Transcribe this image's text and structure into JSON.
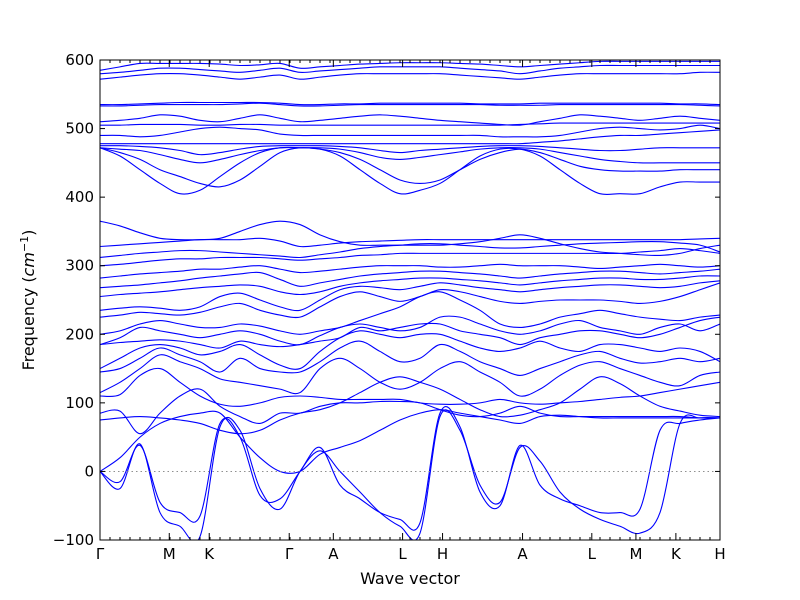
{
  "chart_data": {
    "type": "line",
    "title": "",
    "xlabel": "Wave vector",
    "ylabel_main": "Frequency (",
    "ylabel_math": "cm",
    "ylabel_exp": "−1",
    "ylabel_close": ")",
    "ylim": [
      -100,
      600
    ],
    "yticks": [
      -100,
      0,
      100,
      200,
      300,
      400,
      500,
      600
    ],
    "line_color": "#0000ff",
    "zero_line_style": "dotted",
    "grid": false,
    "legend": "none",
    "kpoints": [
      {
        "label": "Γ",
        "x": 0
      },
      {
        "label": "M",
        "x": 1.0
      },
      {
        "label": "K",
        "x": 1.577
      },
      {
        "label": "Γ",
        "x": 2.732
      },
      {
        "label": "A",
        "x": 3.369
      },
      {
        "label": "L",
        "x": 4.369
      },
      {
        "label": "H",
        "x": 4.946
      },
      {
        "label": "A",
        "x": 6.101
      },
      {
        "label": "L",
        "x": 7.101
      },
      {
        "label": "M",
        "x": 7.738
      },
      {
        "label": "K",
        "x": 8.315
      },
      {
        "label": "H",
        "x": 8.952
      }
    ],
    "series": [
      {
        "values": [
          0,
          -25,
          40,
          -60,
          -80,
          -95,
          65,
          60,
          -25,
          -55,
          0,
          30,
          0,
          -30,
          -60,
          -80,
          -90,
          80,
          60,
          -20,
          -45,
          35,
          15,
          -30,
          -55,
          -70,
          -80,
          -90,
          -60,
          70,
          78,
          78
        ]
      },
      {
        "values": [
          0,
          -15,
          38,
          -45,
          -60,
          -65,
          70,
          50,
          -35,
          -40,
          0,
          35,
          -20,
          -40,
          -60,
          -70,
          -75,
          85,
          65,
          -30,
          -50,
          38,
          -20,
          -40,
          -50,
          -60,
          -60,
          -55,
          60,
          70,
          75,
          78
        ]
      },
      {
        "values": [
          0,
          20,
          50,
          70,
          80,
          85,
          85,
          50,
          20,
          0,
          0,
          25,
          35,
          45,
          60,
          75,
          85,
          90,
          85,
          80,
          75,
          70,
          80,
          82,
          80,
          78,
          78,
          78,
          78,
          78,
          78,
          78
        ]
      },
      {
        "values": [
          75,
          78,
          80,
          78,
          75,
          70,
          60,
          55,
          60,
          75,
          85,
          90,
          100,
          115,
          130,
          138,
          130,
          120,
          105,
          90,
          80,
          82,
          90,
          100,
          120,
          138,
          128,
          110,
          95,
          88,
          82,
          80
        ]
      },
      {
        "values": [
          85,
          88,
          55,
          85,
          110,
          120,
          95,
          80,
          70,
          85,
          85,
          95,
          100,
          100,
          102,
          102,
          100,
          90,
          82,
          80,
          85,
          95,
          85,
          80,
          80,
          80,
          80,
          80,
          80,
          80,
          78,
          78
        ]
      },
      {
        "values": [
          110,
          112,
          140,
          150,
          130,
          110,
          98,
          95,
          100,
          108,
          110,
          108,
          105,
          105,
          105,
          105,
          100,
          98,
          98,
          100,
          105,
          100,
          98,
          100,
          102,
          105,
          108,
          110,
          115,
          120,
          125,
          130
        ]
      },
      {
        "values": [
          115,
          130,
          150,
          170,
          160,
          150,
          135,
          130,
          125,
          120,
          115,
          150,
          165,
          150,
          130,
          120,
          130,
          150,
          160,
          145,
          130,
          110,
          120,
          140,
          155,
          160,
          150,
          140,
          130,
          125,
          140,
          145
        ]
      },
      {
        "values": [
          145,
          150,
          165,
          180,
          170,
          160,
          145,
          165,
          150,
          145,
          145,
          160,
          180,
          190,
          175,
          160,
          165,
          185,
          175,
          160,
          150,
          140,
          150,
          160,
          170,
          175,
          165,
          158,
          160,
          165,
          160,
          165
        ]
      },
      {
        "values": [
          150,
          165,
          180,
          185,
          180,
          170,
          175,
          185,
          170,
          155,
          150,
          175,
          195,
          205,
          200,
          195,
          200,
          200,
          190,
          180,
          175,
          180,
          190,
          180,
          175,
          185,
          185,
          180,
          175,
          180,
          175,
          160
        ]
      },
      {
        "values": [
          185,
          188,
          190,
          192,
          190,
          185,
          180,
          190,
          185,
          182,
          185,
          190,
          195,
          210,
          205,
          210,
          215,
          215,
          205,
          200,
          195,
          185,
          195,
          200,
          205,
          205,
          200,
          195,
          200,
          210,
          220,
          225
        ]
      },
      {
        "values": [
          185,
          195,
          210,
          205,
          200,
          195,
          200,
          205,
          200,
          190,
          185,
          198,
          210,
          215,
          210,
          205,
          210,
          225,
          225,
          215,
          205,
          200,
          205,
          215,
          220,
          210,
          205,
          200,
          210,
          215,
          205,
          215
        ]
      },
      {
        "values": [
          200,
          205,
          215,
          220,
          215,
          210,
          210,
          215,
          212,
          205,
          200,
          205,
          210,
          220,
          230,
          240,
          255,
          262,
          250,
          235,
          215,
          210,
          215,
          225,
          230,
          235,
          230,
          225,
          222,
          220,
          225,
          228
        ]
      },
      {
        "values": [
          225,
          228,
          232,
          230,
          228,
          232,
          240,
          245,
          235,
          228,
          225,
          240,
          255,
          262,
          255,
          248,
          255,
          265,
          262,
          255,
          248,
          245,
          248,
          250,
          250,
          250,
          248,
          245,
          248,
          255,
          265,
          275
        ]
      },
      {
        "values": [
          235,
          238,
          240,
          238,
          235,
          240,
          255,
          260,
          250,
          240,
          235,
          250,
          265,
          270,
          268,
          265,
          270,
          275,
          272,
          268,
          265,
          262,
          265,
          268,
          270,
          272,
          272,
          270,
          268,
          270,
          275,
          278
        ]
      },
      {
        "values": [
          255,
          258,
          260,
          262,
          265,
          268,
          270,
          272,
          270,
          262,
          258,
          262,
          270,
          275,
          278,
          280,
          282,
          282,
          280,
          278,
          275,
          272,
          275,
          278,
          280,
          282,
          282,
          280,
          280,
          282,
          285,
          285
        ]
      },
      {
        "values": [
          268,
          270,
          272,
          275,
          278,
          282,
          285,
          288,
          290,
          280,
          270,
          275,
          280,
          285,
          288,
          290,
          292,
          292,
          290,
          288,
          285,
          282,
          285,
          288,
          290,
          292,
          292,
          290,
          288,
          290,
          292,
          295
        ]
      },
      {
        "values": [
          282,
          285,
          288,
          290,
          292,
          295,
          295,
          298,
          300,
          295,
          290,
          292,
          295,
          298,
          300,
          300,
          300,
          298,
          298,
          300,
          302,
          300,
          300,
          300,
          298,
          296,
          298,
          300,
          302,
          300,
          298,
          300
        ]
      },
      {
        "values": [
          300,
          302,
          305,
          308,
          310,
          310,
          312,
          312,
          312,
          310,
          308,
          310,
          312,
          315,
          316,
          318,
          318,
          318,
          318,
          318,
          318,
          318,
          318,
          318,
          318,
          318,
          318,
          320,
          322,
          325,
          322,
          318
        ]
      },
      {
        "values": [
          312,
          315,
          318,
          320,
          322,
          322,
          320,
          318,
          316,
          314,
          312,
          316,
          320,
          325,
          328,
          330,
          332,
          332,
          330,
          328,
          326,
          326,
          328,
          330,
          332,
          333,
          334,
          335,
          335,
          333,
          330,
          320
        ]
      },
      {
        "values": [
          328,
          330,
          332,
          334,
          336,
          338,
          338,
          338,
          340,
          336,
          328,
          330,
          333,
          335,
          336,
          337,
          338,
          338,
          338,
          338,
          338,
          338,
          338,
          338,
          338,
          338,
          338,
          338,
          338,
          338,
          339,
          340
        ]
      },
      {
        "values": [
          365,
          358,
          348,
          340,
          338,
          338,
          340,
          350,
          360,
          365,
          360,
          345,
          335,
          330,
          330,
          330,
          330,
          330,
          332,
          335,
          340,
          345,
          340,
          332,
          325,
          320,
          318,
          316,
          315,
          318,
          325,
          330
        ]
      },
      {
        "values": [
          472,
          460,
          440,
          420,
          405,
          410,
          430,
          450,
          465,
          472,
          472,
          470,
          460,
          440,
          420,
          405,
          410,
          420,
          440,
          460,
          470,
          470,
          460,
          440,
          420,
          405,
          405,
          405,
          415,
          422,
          422,
          422
        ]
      },
      {
        "values": [
          472,
          465,
          455,
          440,
          430,
          420,
          415,
          425,
          445,
          465,
          472,
          470,
          465,
          455,
          440,
          425,
          420,
          425,
          440,
          455,
          465,
          470,
          465,
          455,
          445,
          440,
          438,
          438,
          438,
          440,
          440,
          440
        ]
      },
      {
        "values": [
          472,
          470,
          468,
          462,
          455,
          450,
          455,
          462,
          468,
          472,
          472,
          472,
          470,
          465,
          458,
          455,
          458,
          462,
          466,
          470,
          472,
          472,
          470,
          465,
          460,
          455,
          452,
          450,
          450,
          450,
          450,
          450
        ]
      },
      {
        "values": [
          475,
          475,
          474,
          472,
          468,
          462,
          465,
          470,
          474,
          475,
          475,
          475,
          474,
          472,
          468,
          465,
          468,
          470,
          472,
          474,
          475,
          475,
          474,
          472,
          470,
          468,
          468,
          470,
          472,
          472,
          472,
          472
        ]
      },
      {
        "values": [
          478,
          478,
          478,
          478,
          478,
          478,
          478,
          478,
          478,
          478,
          478,
          478,
          478,
          478,
          478,
          478,
          478,
          478,
          478,
          478,
          478,
          478,
          480,
          482,
          485,
          488,
          490,
          490,
          492,
          494,
          496,
          498
        ]
      },
      {
        "values": [
          490,
          490,
          488,
          490,
          495,
          500,
          502,
          500,
          498,
          492,
          490,
          490,
          490,
          490,
          490,
          490,
          490,
          490,
          490,
          490,
          488,
          488,
          488,
          490,
          495,
          500,
          502,
          500,
          498,
          500,
          505,
          500
        ]
      },
      {
        "values": [
          505,
          505,
          506,
          506,
          506,
          505,
          505,
          506,
          506,
          505,
          505,
          505,
          505,
          505,
          505,
          505,
          505,
          505,
          505,
          505,
          505,
          506,
          507,
          508,
          508,
          508,
          508,
          508,
          508,
          508,
          508,
          508
        ]
      },
      {
        "values": [
          510,
          512,
          515,
          520,
          518,
          512,
          510,
          515,
          520,
          515,
          510,
          512,
          515,
          518,
          520,
          518,
          515,
          512,
          510,
          508,
          506,
          505,
          510,
          515,
          520,
          518,
          515,
          512,
          515,
          518,
          515,
          512
        ]
      },
      {
        "values": [
          533,
          533,
          534,
          535,
          535,
          535,
          535,
          536,
          537,
          535,
          533,
          533,
          534,
          535,
          535,
          535,
          535,
          535,
          535,
          535,
          534,
          534,
          534,
          535,
          535,
          535,
          535,
          535,
          535,
          535,
          534,
          533
        ]
      },
      {
        "values": [
          535,
          535,
          536,
          537,
          538,
          538,
          538,
          538,
          538,
          537,
          535,
          535,
          536,
          536,
          537,
          537,
          537,
          537,
          537,
          536,
          536,
          536,
          537,
          537,
          537,
          537,
          537,
          537,
          537,
          536,
          536,
          535
        ]
      },
      {
        "values": [
          572,
          575,
          578,
          580,
          580,
          578,
          575,
          572,
          575,
          578,
          572,
          575,
          578,
          580,
          580,
          580,
          580,
          580,
          578,
          576,
          574,
          572,
          575,
          578,
          580,
          580,
          580,
          580,
          580,
          580,
          582,
          582
        ]
      },
      {
        "values": [
          580,
          582,
          585,
          588,
          588,
          586,
          584,
          582,
          585,
          588,
          582,
          584,
          586,
          588,
          590,
          590,
          590,
          590,
          588,
          586,
          584,
          580,
          584,
          588,
          590,
          592,
          592,
          592,
          592,
          592,
          592,
          592
        ]
      },
      {
        "values": [
          585,
          590,
          595,
          595,
          595,
          595,
          594,
          592,
          593,
          595,
          588,
          590,
          592,
          594,
          595,
          596,
          596,
          596,
          595,
          594,
          592,
          590,
          592,
          594,
          596,
          598,
          598,
          598,
          598,
          598,
          598,
          598
        ]
      }
    ]
  }
}
